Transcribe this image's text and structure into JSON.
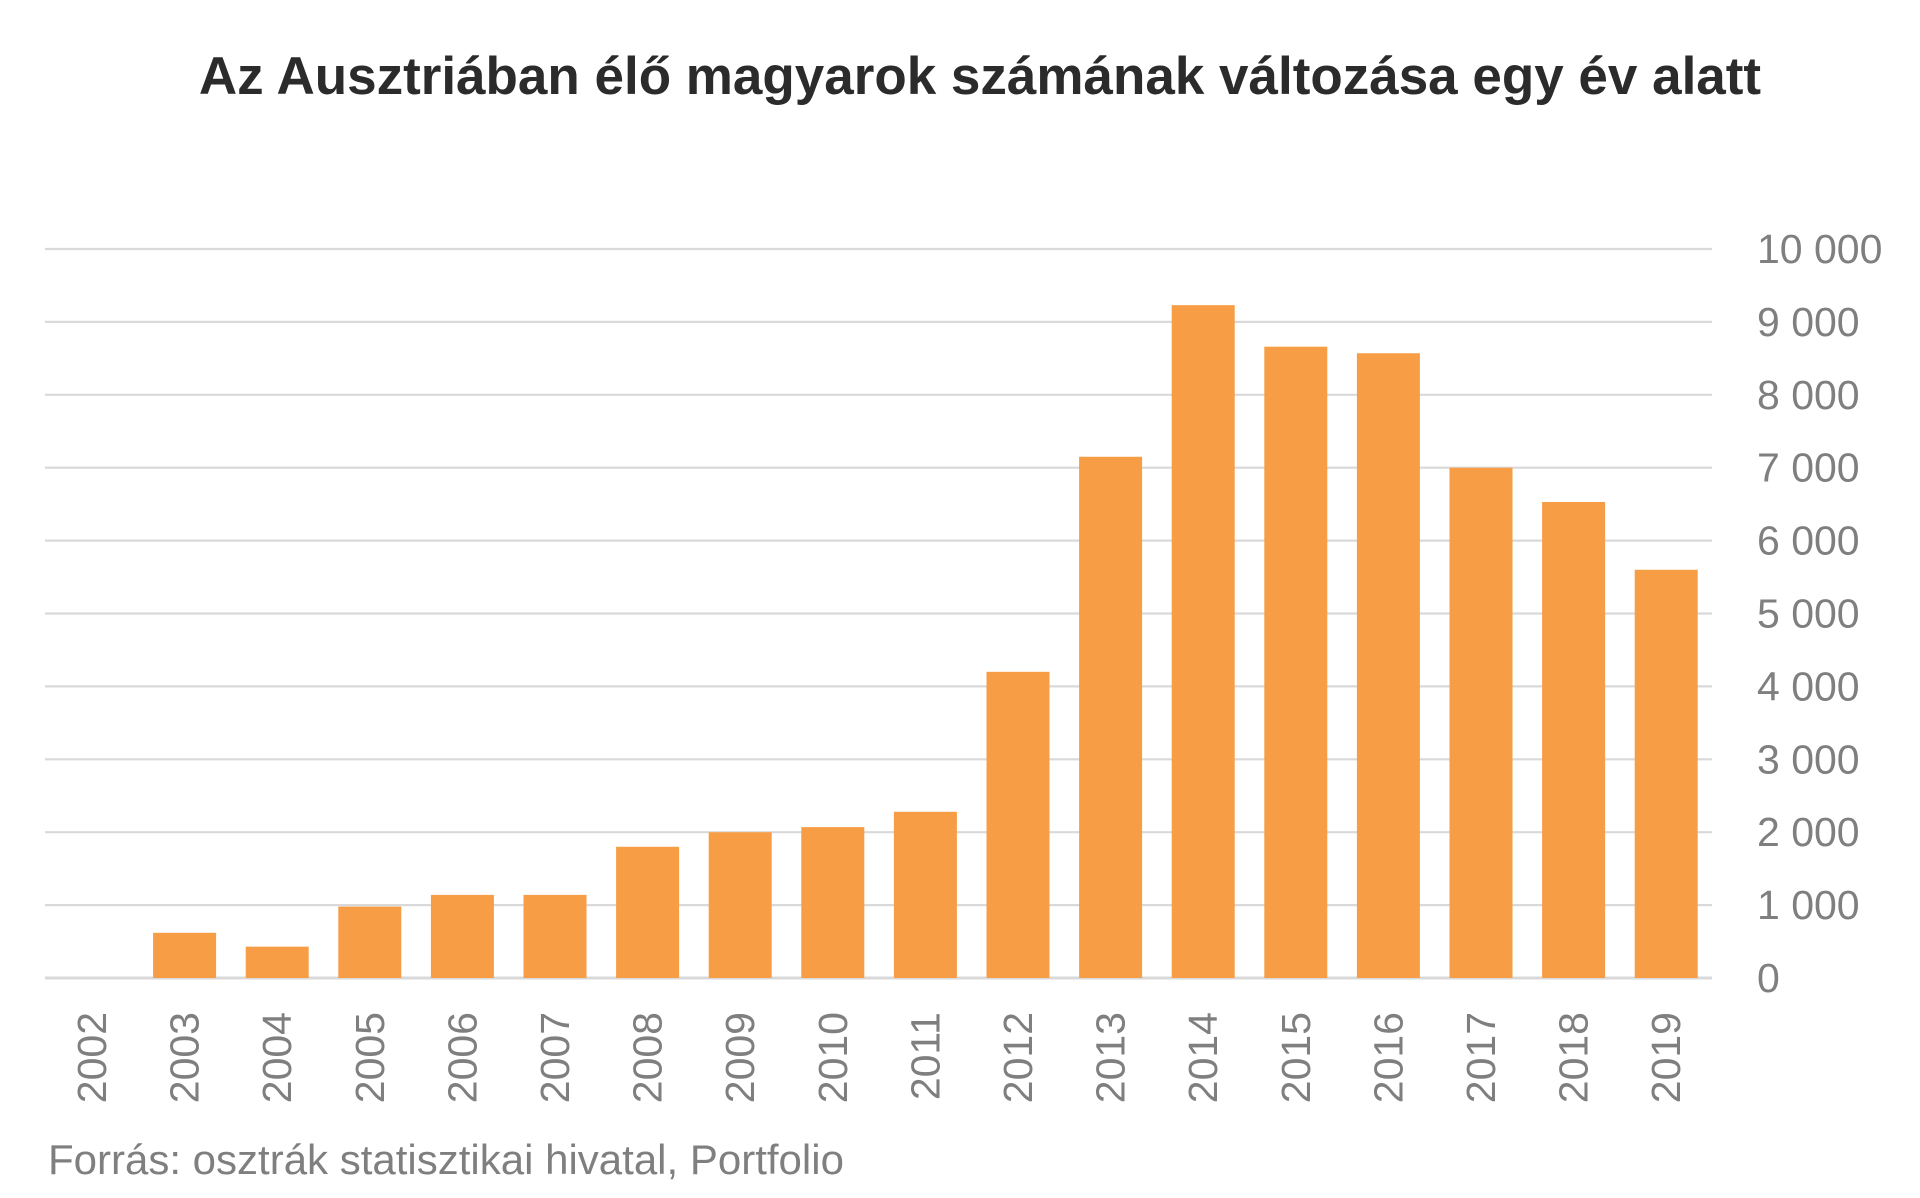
{
  "chart_data": {
    "type": "bar",
    "title": "Az Ausztriában élő magyarok számának változása egy év alatt",
    "xlabel": "",
    "ylabel": "",
    "categories": [
      "2002",
      "2003",
      "2004",
      "2005",
      "2006",
      "2007",
      "2008",
      "2009",
      "2010",
      "2011",
      "2012",
      "2013",
      "2014",
      "2015",
      "2016",
      "2017",
      "2018",
      "2019"
    ],
    "values": [
      0,
      620,
      430,
      980,
      1140,
      1140,
      1800,
      2000,
      2070,
      2280,
      4200,
      7150,
      9230,
      8660,
      8570,
      7000,
      6530,
      5600
    ],
    "ylim": [
      0,
      10000
    ],
    "yticks": [
      0,
      1000,
      2000,
      3000,
      4000,
      5000,
      6000,
      7000,
      8000,
      9000,
      10000
    ],
    "ytick_labels": [
      "0",
      "1 000",
      "2 000",
      "3 000",
      "4 000",
      "5 000",
      "6 000",
      "7 000",
      "8 000",
      "9 000",
      "10 000"
    ],
    "y_axis_side": "right",
    "x_label_rotation": "vertical",
    "grid": true,
    "bar_color": "#F79D46",
    "grid_color": "#D9D9D9",
    "source": "Forrás: osztrák statisztikai hivatal, Portfolio"
  }
}
